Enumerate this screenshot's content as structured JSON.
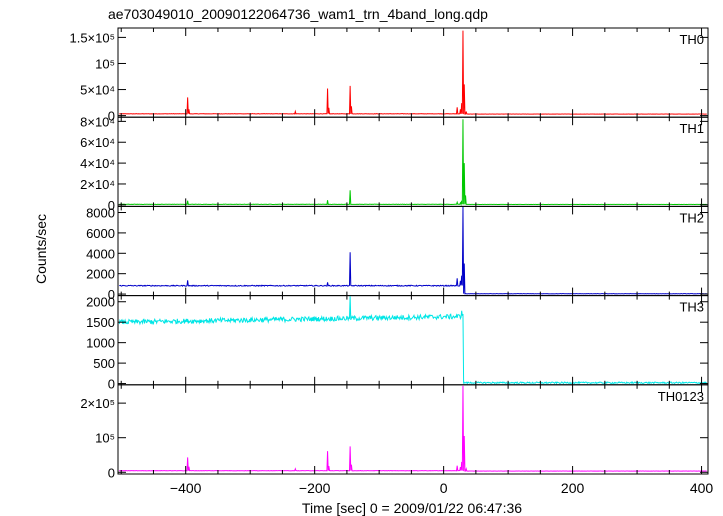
{
  "chart_data": {
    "type": "line",
    "title": "ae703049010_20090122064736_wam1_trn_4band_long.qdp",
    "xlabel": "Time [sec] 0 = 2009/01/22 06:47:36",
    "ylabel": "Counts/sec",
    "xlim": [
      -505,
      410
    ],
    "x_ticks": [
      -400,
      -200,
      0,
      200,
      400
    ],
    "x_tick_labels": [
      "−400",
      "−200",
      "0",
      "200",
      "400"
    ],
    "panels": [
      {
        "name": "TH0",
        "color": "#ff0000",
        "ylim": [
          -3000,
          168000
        ],
        "y_ticks": [
          0,
          50000,
          100000,
          150000
        ],
        "y_tick_labels": [
          "0",
          "5×10⁴",
          "10⁵",
          "1.5×10⁵"
        ],
        "baseline_before": 3500,
        "baseline_after": 3000,
        "noise": 300,
        "spikes": [
          {
            "x": -397,
            "y": 35000
          },
          {
            "x": -395,
            "y": 12000
          },
          {
            "x": -230,
            "y": 8000
          },
          {
            "x": -180,
            "y": 52000
          },
          {
            "x": -178,
            "y": 15000
          },
          {
            "x": -145,
            "y": 57000
          },
          {
            "x": -143,
            "y": 18000
          },
          {
            "x": 21,
            "y": 16000
          },
          {
            "x": 26,
            "y": 12000
          },
          {
            "x": 28,
            "y": 24000
          },
          {
            "x": 30,
            "y": 163000
          },
          {
            "x": 32,
            "y": 60000
          },
          {
            "x": 35,
            "y": 8000
          }
        ]
      },
      {
        "name": "TH1",
        "color": "#00c800",
        "ylim": [
          -1500,
          84000
        ],
        "y_ticks": [
          0,
          20000,
          40000,
          60000,
          80000
        ],
        "y_tick_labels": [
          "0",
          "2×10⁴",
          "4×10⁴",
          "6×10⁴",
          "8×10⁴"
        ],
        "baseline_before": 500,
        "baseline_after": 400,
        "noise": 150,
        "spikes": [
          {
            "x": -397,
            "y": 4000
          },
          {
            "x": -180,
            "y": 4500
          },
          {
            "x": -145,
            "y": 14000
          },
          {
            "x": 21,
            "y": 2500
          },
          {
            "x": 26,
            "y": 2000
          },
          {
            "x": 28,
            "y": 4000
          },
          {
            "x": 30,
            "y": 82000
          },
          {
            "x": 32,
            "y": 40000
          },
          {
            "x": 34,
            "y": 9000
          }
        ]
      },
      {
        "name": "TH2",
        "color": "#0000c8",
        "ylim": [
          -150,
          8600
        ],
        "y_ticks": [
          0,
          2000,
          4000,
          6000,
          8000
        ],
        "y_tick_labels": [
          "0",
          "2000",
          "4000",
          "6000",
          "8000"
        ],
        "baseline_before": 820,
        "baseline_after": 30,
        "noise": 45,
        "spikes": [
          {
            "x": -397,
            "y": 1350
          },
          {
            "x": -180,
            "y": 1150
          },
          {
            "x": -145,
            "y": 4100
          },
          {
            "x": 21,
            "y": 1550
          },
          {
            "x": 26,
            "y": 1300
          },
          {
            "x": 28,
            "y": 1800
          },
          {
            "x": 30,
            "y": 8550
          },
          {
            "x": 32,
            "y": 3000
          }
        ]
      },
      {
        "name": "TH3",
        "color": "#00e6e6",
        "ylim": [
          -30,
          2150
        ],
        "y_ticks": [
          0,
          500,
          1000,
          1500,
          2000
        ],
        "y_tick_labels": [
          "0",
          "500",
          "1000",
          "1500",
          "2000"
        ],
        "baseline_before": 1500,
        "baseline_end": 1640,
        "baseline_after": 20,
        "noise": 60,
        "spikes": [
          {
            "x": -145,
            "y": 2150
          },
          {
            "x": 28,
            "y": 1780
          },
          {
            "x": 30,
            "y": 1700
          }
        ]
      },
      {
        "name": "TH0123",
        "color": "#ff00ff",
        "ylim": [
          -5000,
          253000
        ],
        "y_ticks": [
          0,
          100000,
          200000
        ],
        "y_tick_labels": [
          "0",
          "10⁵",
          "2×10⁵"
        ],
        "baseline_before": 4500,
        "baseline_after": 3500,
        "noise": 400,
        "spikes": [
          {
            "x": -397,
            "y": 43000
          },
          {
            "x": -395,
            "y": 16000
          },
          {
            "x": -230,
            "y": 10000
          },
          {
            "x": -180,
            "y": 61000
          },
          {
            "x": -178,
            "y": 18000
          },
          {
            "x": -145,
            "y": 75000
          },
          {
            "x": -143,
            "y": 22000
          },
          {
            "x": 21,
            "y": 19000
          },
          {
            "x": 26,
            "y": 15000
          },
          {
            "x": 28,
            "y": 30000
          },
          {
            "x": 30,
            "y": 250000
          },
          {
            "x": 32,
            "y": 105000
          },
          {
            "x": 35,
            "y": 10000
          }
        ]
      }
    ],
    "grid": false,
    "legend": "none",
    "step_time": 30
  }
}
